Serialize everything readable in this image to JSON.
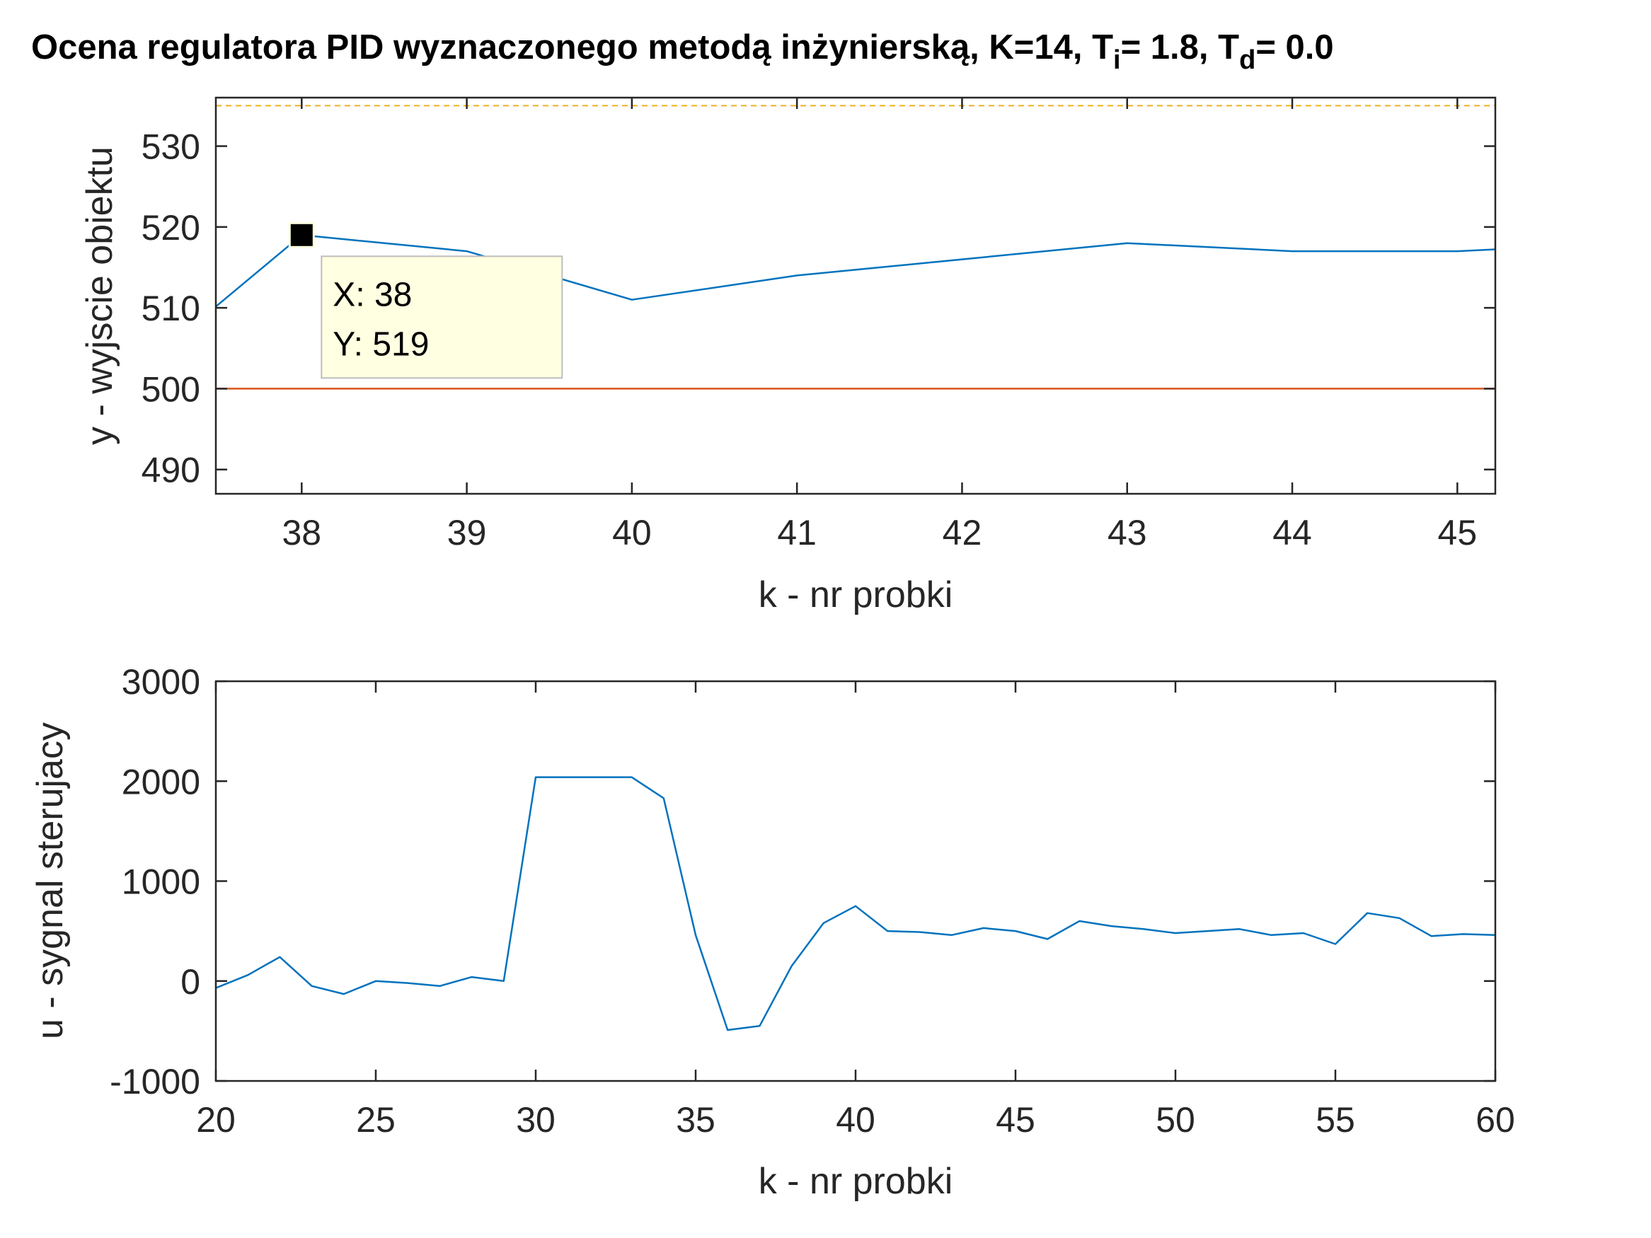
{
  "colors": {
    "axis": "#262626",
    "series_output": "#0072BD",
    "series_setpoint": "#D95319",
    "series_limit": "#EDB120",
    "series_control": "#0072BD",
    "datatip_bg": "#FFFFE1"
  },
  "chart_data": [
    {
      "type": "line",
      "title": {
        "pre": "Ocena regulatora PID wyznaczonego metodą inżynierską, K=14, T",
        "sub1": "i",
        "mid": "= 1.8, T",
        "sub2": "d",
        "post": "= 0.0"
      },
      "xlabel": "k - nr probki",
      "ylabel": "y - wyjscie obiektu",
      "xlim": [
        37.48,
        45.23
      ],
      "ylim": [
        487,
        536
      ],
      "xticks": [
        38,
        39,
        40,
        41,
        42,
        43,
        44,
        45
      ],
      "xtick_labels": [
        "38",
        "39",
        "40",
        "41",
        "42",
        "43",
        "44",
        "45"
      ],
      "yticks": [
        490,
        500,
        510,
        520,
        530
      ],
      "ytick_labels": [
        "490",
        "500",
        "510",
        "520",
        "530"
      ],
      "series": [
        {
          "x": [
            37,
            38,
            39,
            40,
            41,
            42,
            43,
            44,
            45,
            46
          ],
          "y": [
            502,
            519,
            517,
            511,
            514,
            516,
            518,
            517,
            517,
            518
          ],
          "style": "solid"
        },
        {
          "x": [
            37,
            46
          ],
          "y": [
            500,
            500
          ],
          "style": "solid"
        },
        {
          "x": [
            37,
            46
          ],
          "y": [
            535,
            535
          ],
          "style": "dashed"
        }
      ],
      "datatip": {
        "x": 38,
        "y": 519,
        "line1": "X: 38",
        "line2": "Y: 519"
      },
      "grid": false
    },
    {
      "type": "line",
      "xlabel": "k - nr probki",
      "ylabel": "u - sygnal sterujacy",
      "xlim": [
        20,
        60
      ],
      "ylim": [
        -1000,
        3000
      ],
      "xticks": [
        20,
        25,
        30,
        35,
        40,
        45,
        50,
        55,
        60
      ],
      "xtick_labels": [
        "20",
        "25",
        "30",
        "35",
        "40",
        "45",
        "50",
        "55",
        "60"
      ],
      "yticks": [
        -1000,
        0,
        1000,
        2000,
        3000
      ],
      "ytick_labels": [
        "-1000",
        "0",
        "1000",
        "2000",
        "3000"
      ],
      "series": [
        {
          "x": [
            20,
            21,
            22,
            23,
            24,
            25,
            26,
            27,
            28,
            29,
            30,
            31,
            32,
            33,
            34,
            35,
            36,
            37,
            38,
            39,
            40,
            41,
            42,
            43,
            44,
            45,
            46,
            47,
            48,
            49,
            50,
            51,
            52,
            53,
            54,
            55,
            56,
            57,
            58,
            59,
            60
          ],
          "y": [
            -70,
            60,
            240,
            -50,
            -130,
            0,
            -20,
            -50,
            40,
            0,
            2040,
            2040,
            2040,
            2040,
            1830,
            460,
            -490,
            -450,
            150,
            580,
            750,
            500,
            490,
            460,
            530,
            500,
            420,
            600,
            550,
            520,
            480,
            500,
            520,
            460,
            480,
            370,
            680,
            630,
            450,
            470,
            460
          ],
          "style": "solid"
        }
      ],
      "grid": false
    }
  ]
}
